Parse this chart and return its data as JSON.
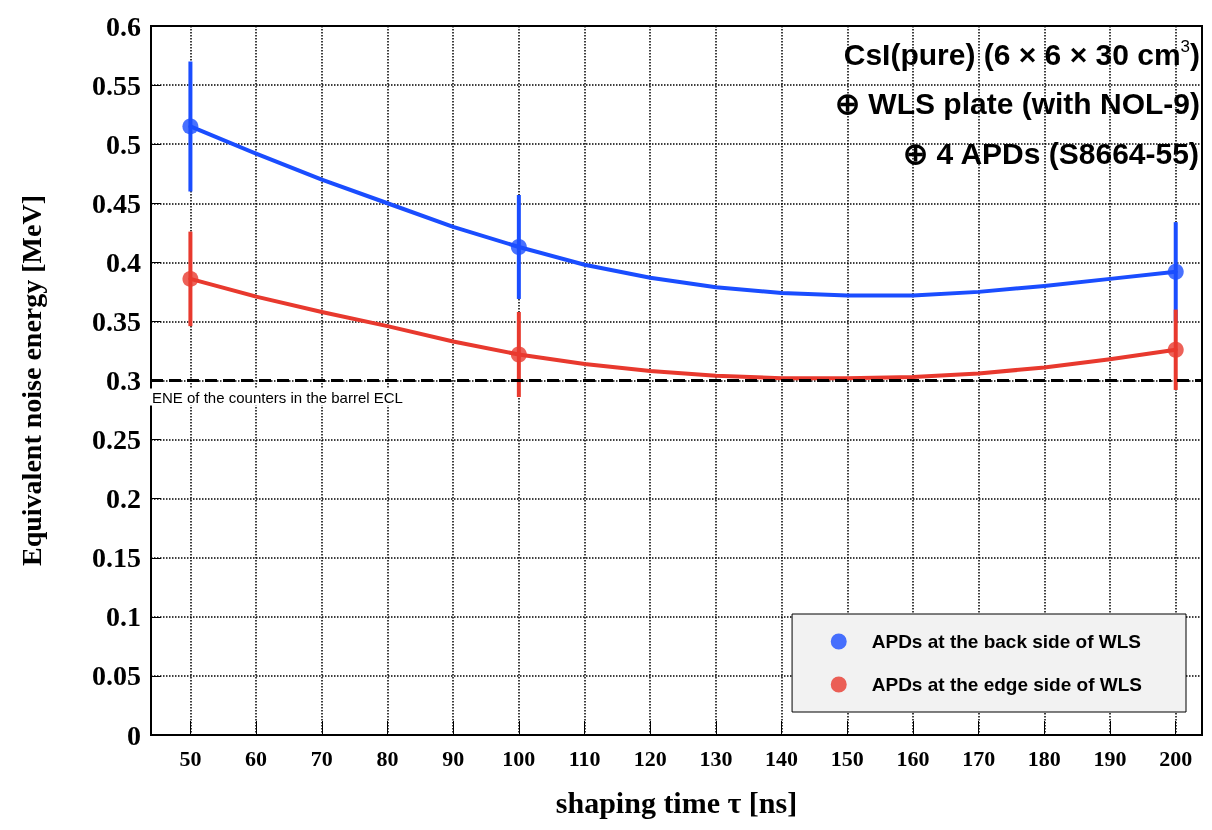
{
  "chart_data": {
    "type": "scatter",
    "xlabel": "shaping time τ [ns]",
    "ylabel": "Equivalent noise energy [MeV]",
    "xlim": [
      44,
      204
    ],
    "xticks": [
      50,
      60,
      70,
      80,
      90,
      100,
      110,
      120,
      130,
      140,
      150,
      160,
      170,
      180,
      190,
      200
    ],
    "ylim": [
      0,
      0.6
    ],
    "yticks": [
      0,
      0.05,
      0.1,
      0.15,
      0.2,
      0.25,
      0.3,
      0.35,
      0.4,
      0.45,
      0.5,
      0.55,
      0.6
    ],
    "grid": true,
    "legend": "bottom right",
    "marker": "circle",
    "series": [
      {
        "name": "APDs at the back side of WLS",
        "color": "#1a4dff",
        "x": [
          50,
          100,
          200
        ],
        "values": [
          0.515,
          0.413,
          0.392
        ],
        "errors": [
          0.055,
          0.044,
          0.042
        ]
      },
      {
        "name": "APDs at the edge side of WLS",
        "color": "#e8392e",
        "x": [
          50,
          100,
          200
        ],
        "values": [
          0.386,
          0.322,
          0.326
        ],
        "errors": [
          0.04,
          0.036,
          0.034
        ]
      },
      {
        "type": "line",
        "marker": "none",
        "color": "#1a4dff",
        "x": [
          50,
          60,
          70,
          80,
          90,
          100,
          110,
          120,
          130,
          140,
          150,
          160,
          170,
          180,
          190,
          200
        ],
        "values": [
          0.515,
          0.492,
          0.47,
          0.45,
          0.43,
          0.413,
          0.398,
          0.387,
          0.379,
          0.374,
          0.372,
          0.372,
          0.375,
          0.38,
          0.386,
          0.392
        ]
      },
      {
        "type": "line",
        "marker": "none",
        "color": "#e8392e",
        "x": [
          50,
          60,
          70,
          80,
          90,
          100,
          110,
          120,
          130,
          140,
          150,
          160,
          170,
          180,
          190,
          200
        ],
        "values": [
          0.386,
          0.371,
          0.358,
          0.346,
          0.333,
          0.322,
          0.314,
          0.308,
          0.304,
          0.302,
          0.302,
          0.303,
          0.306,
          0.311,
          0.318,
          0.326
        ]
      }
    ],
    "ref_lines": [
      {
        "axis": "y",
        "value": 0.3,
        "label": "ENE of the counters in the barrel ECL",
        "color": "#000000",
        "line_style": "dashed"
      }
    ],
    "annotations": [
      "CsI(pure) (6 × 6 × 30 cm$^{3}$)",
      "⊕ WLS plate (with NOL-9)",
      "⊕ 4 APDs (S8664-55)"
    ]
  }
}
